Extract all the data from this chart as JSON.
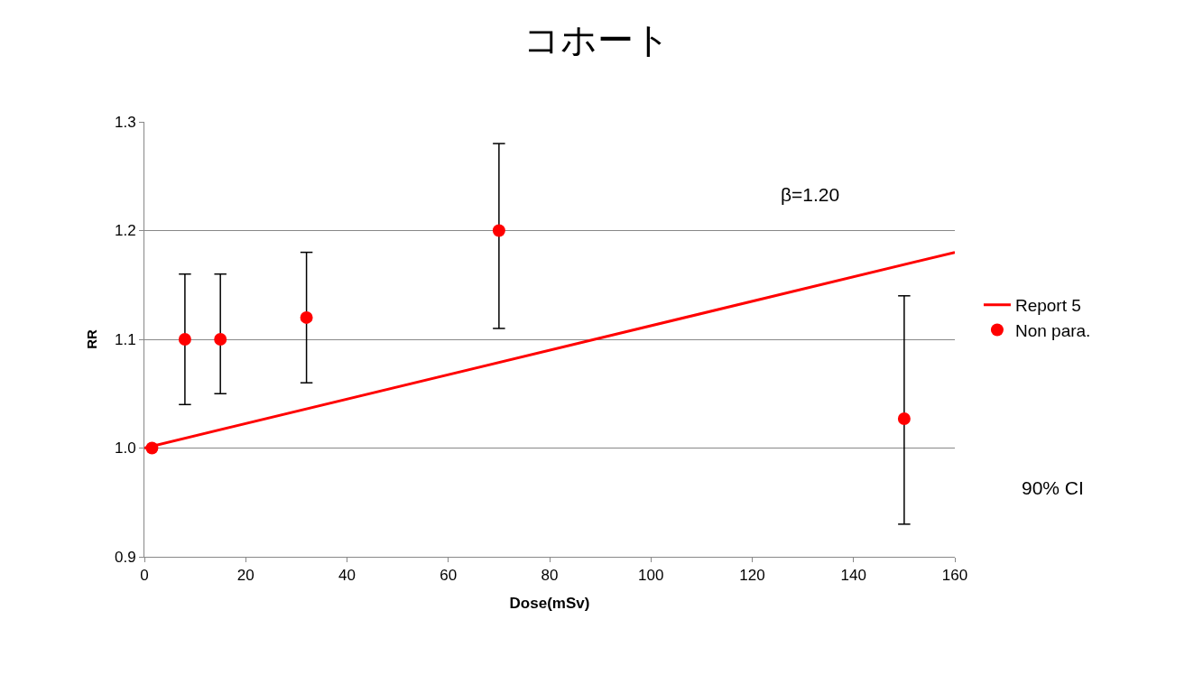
{
  "chart_data": {
    "type": "scatter",
    "title": "コホート",
    "xlabel": "Dose(mSv)",
    "ylabel": "RR",
    "xlim": [
      0,
      160
    ],
    "xticks": [
      0,
      20,
      40,
      60,
      80,
      100,
      120,
      140,
      160
    ],
    "ylim": [
      0.9,
      1.3
    ],
    "yticks": [
      {
        "value": 0.9,
        "label": "0.9"
      },
      {
        "value": 1.0,
        "label": "1.0"
      },
      {
        "value": 1.1,
        "label": "1.1"
      },
      {
        "value": 1.2,
        "label": "1.2"
      },
      {
        "value": 1.3,
        "label": "1.3"
      }
    ],
    "grid": "y",
    "legend": "right",
    "series": [
      {
        "name": "Report 5",
        "type": "line",
        "color": "#ff0000",
        "x": [
          0,
          160
        ],
        "values": [
          1.0,
          1.18
        ],
        "marker": "none",
        "line_style": "solid"
      },
      {
        "name": "Non para.",
        "color": "#ff0000",
        "x": [
          1.5,
          8,
          15,
          32,
          70,
          150
        ],
        "values": [
          1.0,
          1.1,
          1.1,
          1.12,
          1.2,
          1.027
        ],
        "marker": "circle",
        "errors": [
          null,
          [
            1.04,
            1.16
          ],
          [
            1.05,
            1.16
          ],
          [
            1.06,
            1.18
          ],
          [
            1.11,
            1.28
          ],
          [
            0.93,
            1.14
          ]
        ]
      }
    ],
    "annotations": [
      "β=1.20",
      "90% CI"
    ]
  }
}
